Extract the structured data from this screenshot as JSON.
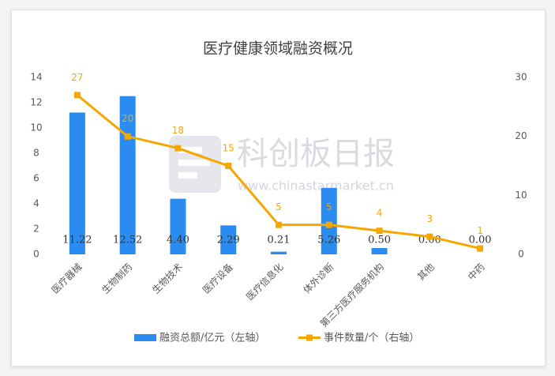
{
  "chart_data": {
    "type": "bar",
    "title": "医疗健康领域融资概况",
    "watermark": "科创板日报",
    "watermark_url": "www.chinastarmarket.cn",
    "categories": [
      "医疗器械",
      "生物制药",
      "生物技术",
      "医疗设备",
      "医疗信息化",
      "体外诊断",
      "第三方医疗服务机构",
      "其他",
      "中药"
    ],
    "series": [
      {
        "name": "融资总额/亿元（左轴）",
        "type": "bar",
        "color": "#2a8cf0",
        "values": [
          11.22,
          12.52,
          4.4,
          2.29,
          0.21,
          5.26,
          0.5,
          0,
          0
        ],
        "value_labels": [
          "11.22",
          "12.52",
          "4.40",
          "2.29",
          "0.21",
          "5.26",
          "0.50",
          "0.00",
          "0.00"
        ]
      },
      {
        "name": "事件数量/个（右轴）",
        "type": "line",
        "axis": "y2",
        "color": "#f5a700",
        "values": [
          27,
          20,
          18,
          15,
          5,
          5,
          4,
          3,
          1
        ]
      }
    ],
    "ylim": [
      0,
      14
    ],
    "yticks": [
      0,
      2,
      4,
      6,
      8,
      10,
      12,
      14
    ],
    "y2lim": [
      0,
      30
    ],
    "y2ticks": [
      0,
      10,
      20,
      30
    ],
    "grid": false
  }
}
